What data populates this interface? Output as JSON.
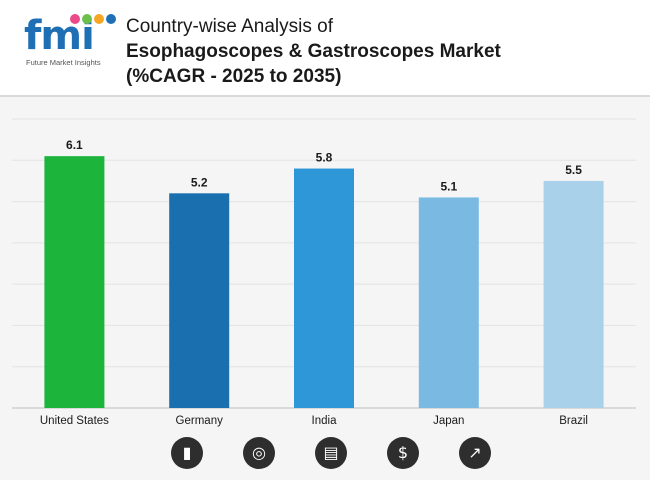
{
  "header": {
    "logo_text": "fmi",
    "logo_tagline": "Future Market Insights",
    "title_line1": "Country-wise Analysis of",
    "title_line2": "Esophagoscopes & Gastroscopes Market",
    "title_line3": "(%CAGR - 2025 to 2035)"
  },
  "logo_dot_colors": [
    "#e94b8a",
    "#6cc04a",
    "#f5a623",
    "#1f6fb5"
  ],
  "chart_data": {
    "type": "bar",
    "categories": [
      "United States",
      "Germany",
      "India",
      "Japan",
      "Brazil"
    ],
    "values": [
      6.1,
      5.2,
      5.8,
      5.1,
      5.5
    ],
    "value_labels": [
      "6.1",
      "5.2",
      "5.8",
      "5.1",
      "5.5"
    ],
    "colors": [
      "#1db43b",
      "#1a6faf",
      "#2e97d8",
      "#7ab9e2",
      "#a9d1ea"
    ],
    "title": "",
    "xlabel": "",
    "ylabel": "",
    "ylim": [
      0,
      7
    ],
    "grid": true
  },
  "footer_icons": [
    {
      "name": "bar-growth-icon",
      "glyph": "▮"
    },
    {
      "name": "analytics-circle-icon",
      "glyph": "◎"
    },
    {
      "name": "report-document-icon",
      "glyph": "▤"
    },
    {
      "name": "dollar-icon",
      "glyph": "$"
    },
    {
      "name": "trend-chart-icon",
      "glyph": "↗"
    }
  ]
}
